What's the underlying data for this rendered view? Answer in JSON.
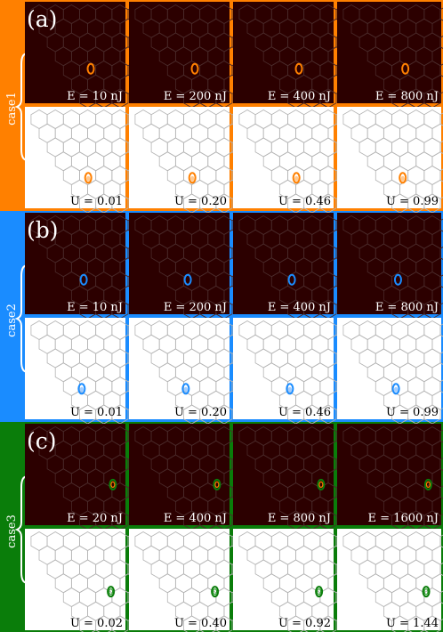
{
  "colors": {
    "case1": "#ff8000",
    "case2": "#1a8cff",
    "case3": "#0a7d0a",
    "panel_dark": "#2c0000",
    "hex_dark": "#4a2a2a",
    "hex_light": "#b4b4b4"
  },
  "icons": {
    "brace": "left-curly-brace"
  },
  "cases": [
    {
      "case_label": "case1",
      "letter": "(a)",
      "marker_style": "orange-ring",
      "top_labels": [
        "E = 10 nJ",
        "E = 200 nJ",
        "E = 400 nJ",
        "E = 800 nJ"
      ],
      "bottom_labels": [
        "U = 0.01",
        "U = 0.20",
        "U = 0.46",
        "U = 0.99"
      ]
    },
    {
      "case_label": "case2",
      "letter": "(b)",
      "marker_style": "blue-ring",
      "top_labels": [
        "E = 10 nJ",
        "E = 200 nJ",
        "E = 400 nJ",
        "E = 800 nJ"
      ],
      "bottom_labels": [
        "U = 0.01",
        "U = 0.20",
        "U = 0.46",
        "U = 0.99"
      ]
    },
    {
      "case_label": "case3",
      "letter": "(c)",
      "marker_style": "green-ring",
      "top_labels": [
        "E = 20 nJ",
        "E = 400 nJ",
        "E = 800 nJ",
        "E = 1600 nJ"
      ],
      "bottom_labels": [
        "U = 0.02",
        "U = 0.40",
        "U = 0.92",
        "U = 1.44"
      ]
    }
  ]
}
